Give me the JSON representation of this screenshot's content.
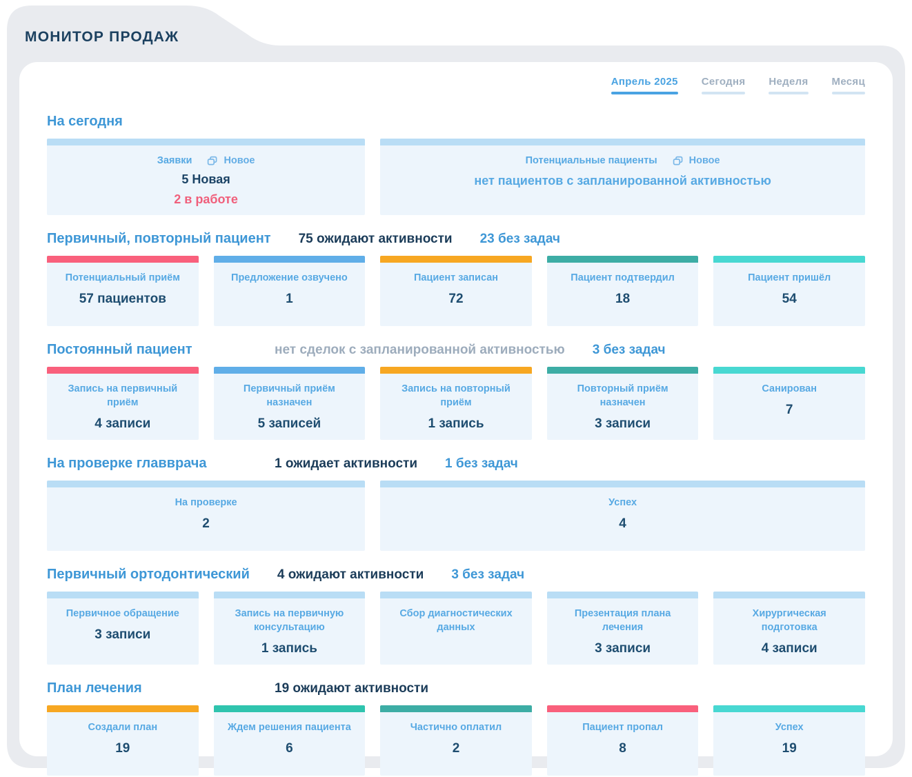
{
  "app": {
    "title": "МОНИТОР ПРОДАЖ"
  },
  "tabs": [
    {
      "label": "Апрель 2025",
      "active": true
    },
    {
      "label": "Сегодня",
      "active": false
    },
    {
      "label": "Неделя",
      "active": false
    },
    {
      "label": "Месяц",
      "active": false
    }
  ],
  "colors": {
    "background": "#e9ebef",
    "card_background": "#edf5fc",
    "accent_blue": "#3e97d6",
    "navy": "#1e4d70",
    "bars": {
      "pink": "#f9607c",
      "blue": "#60aee8",
      "orange": "#f7a722",
      "teal": "#3dada5",
      "mint": "#2fc4ae",
      "turquoise": "#48d8d2",
      "lightblue": "#b9ddf5"
    }
  },
  "icons": {
    "badge": "stacked-windows-icon"
  },
  "sections": [
    {
      "title": "На сегодня",
      "stats": [],
      "cards": [
        {
          "label": "Заявки",
          "badge": "Новое",
          "bar": "lightblue",
          "span": 2,
          "lines": [
            {
              "text": "5 Новая",
              "style": "navy"
            },
            {
              "text": "2 в работе",
              "style": "pink"
            }
          ]
        },
        {
          "label": "Потенциальные пациенты",
          "badge": "Новое",
          "bar": "lightblue",
          "span": 3,
          "lines": [
            {
              "text": "нет пациентов с запланированной активностью",
              "style": "blue"
            }
          ]
        }
      ]
    },
    {
      "title": "Первичный, повторный пациент",
      "stats": [
        {
          "text": "75 ожидают активности",
          "style": "navy"
        },
        {
          "text": "23 без задач",
          "style": "blue"
        }
      ],
      "cards": [
        {
          "label": "Потенциальный приём",
          "value": "57 пациентов",
          "bar": "pink"
        },
        {
          "label": "Предложение озвучено",
          "value": "1",
          "bar": "blue"
        },
        {
          "label": "Пациент записан",
          "value": "72",
          "bar": "orange"
        },
        {
          "label": "Пациент подтвердил",
          "value": "18",
          "bar": "teal"
        },
        {
          "label": "Пациент пришёл",
          "value": "54",
          "bar": "turquoise"
        }
      ]
    },
    {
      "title": "Постоянный пациент",
      "stats": [
        {
          "text": "нет сделок с запланированной активностью",
          "style": "grey"
        },
        {
          "text": "3 без задач",
          "style": "blue"
        }
      ],
      "cards": [
        {
          "label": "Запись на первичный приём",
          "value": "4 записи",
          "bar": "pink"
        },
        {
          "label": "Первичный приём назначен",
          "value": "5 записей",
          "bar": "blue"
        },
        {
          "label": "Запись на повторный приём",
          "value": "1 запись",
          "bar": "orange"
        },
        {
          "label": "Повторный приём назначен",
          "value": "3 записи",
          "bar": "teal"
        },
        {
          "label": "Санирован",
          "value": "7",
          "bar": "turquoise"
        }
      ]
    },
    {
      "title": "На проверке главврача",
      "stats": [
        {
          "text": "1 ожидает активности",
          "style": "navy"
        },
        {
          "text": "1 без задач",
          "style": "blue"
        }
      ],
      "cards": [
        {
          "label": "На проверке",
          "value": "2",
          "bar": "lightblue",
          "span": 2
        },
        {
          "label": "Успех",
          "value": "4",
          "bar": "lightblue",
          "span": 3
        }
      ]
    },
    {
      "title": "Первичный ортодонтический",
      "stats": [
        {
          "text": "4 ожидают активности",
          "style": "navy"
        },
        {
          "text": "3 без задач",
          "style": "blue"
        }
      ],
      "cards": [
        {
          "label": "Первичное обращение",
          "value": "3 записи",
          "bar": "lightblue"
        },
        {
          "label": "Запись на первичную консультацию",
          "value": "1 запись",
          "bar": "lightblue"
        },
        {
          "label": "Сбор диагностических данных",
          "value": "",
          "bar": "lightblue"
        },
        {
          "label": "Презентация плана лечения",
          "value": "3 записи",
          "bar": "lightblue"
        },
        {
          "label": "Хирургическая подготовка",
          "value": "4 записи",
          "bar": "lightblue"
        }
      ]
    },
    {
      "title": "План лечения",
      "stats": [
        {
          "text": "19 ожидают активности",
          "style": "navy"
        }
      ],
      "cards": [
        {
          "label": "Создали план",
          "value": "19",
          "bar": "orange"
        },
        {
          "label": "Ждем решения пациента",
          "value": "6",
          "bar": "mint"
        },
        {
          "label": "Частично оплатил",
          "value": "2",
          "bar": "teal"
        },
        {
          "label": "Пациент пропал",
          "value": "8",
          "bar": "pink"
        },
        {
          "label": "Успех",
          "value": "19",
          "bar": "turquoise"
        }
      ]
    }
  ]
}
